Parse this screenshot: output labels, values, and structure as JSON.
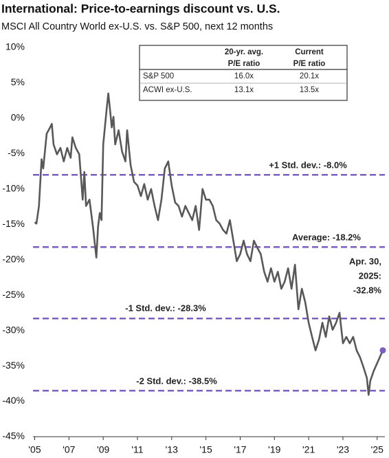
{
  "chart_data": {
    "type": "line",
    "title": "International: Price-to-earnings discount vs. U.S.",
    "subtitle": "MSCI All Country World ex-U.S. vs. S&P 500, next 12 months",
    "color": "#58585a",
    "x": [
      2005.0,
      2005.1,
      2005.25,
      2005.4,
      2005.5,
      2005.7,
      2005.9,
      2006.0,
      2006.1,
      2006.3,
      2006.5,
      2006.7,
      2006.9,
      2007.1,
      2007.2,
      2007.4,
      2007.6,
      2007.8,
      2007.9,
      2008.0,
      2008.2,
      2008.4,
      2008.6,
      2008.7,
      2008.8,
      2008.9,
      2009.0,
      2009.2,
      2009.3,
      2009.4,
      2009.5,
      2009.6,
      2009.7,
      2009.9,
      2010.1,
      2010.3,
      2010.4,
      2010.6,
      2010.8,
      2011.0,
      2011.2,
      2011.4,
      2011.6,
      2011.8,
      2012.0,
      2012.2,
      2012.4,
      2012.6,
      2012.8,
      2013.0,
      2013.2,
      2013.4,
      2013.6,
      2013.8,
      2014.0,
      2014.2,
      2014.4,
      2014.6,
      2014.8,
      2015.0,
      2015.2,
      2015.4,
      2015.6,
      2015.8,
      2016.0,
      2016.2,
      2016.4,
      2016.6,
      2016.8,
      2017.0,
      2017.2,
      2017.4,
      2017.6,
      2017.8,
      2018.0,
      2018.2,
      2018.4,
      2018.6,
      2018.8,
      2019.0,
      2019.2,
      2019.4,
      2019.6,
      2019.8,
      2020.0,
      2020.2,
      2020.4,
      2020.6,
      2020.8,
      2021.0,
      2021.2,
      2021.4,
      2021.6,
      2021.8,
      2022.0,
      2022.2,
      2022.4,
      2022.6,
      2022.8,
      2023.0,
      2023.2,
      2023.4,
      2023.6,
      2023.8,
      2024.0,
      2024.2,
      2024.4,
      2024.5,
      2024.6,
      2024.8,
      2025.33
    ],
    "values": [
      -14.7,
      -14.9,
      -12.4,
      -5.8,
      -7.1,
      -2.2,
      -1.3,
      -0.8,
      -3.7,
      -5.1,
      -4.2,
      -6.1,
      -4.2,
      -5.6,
      -2.7,
      -4.2,
      -5.1,
      -11.5,
      -7.6,
      -12.4,
      -11.5,
      -15.3,
      -19.7,
      -15.3,
      -13.4,
      -14.4,
      -3.7,
      1.2,
      3.5,
      1.2,
      -1.3,
      0.2,
      -3.7,
      -1.7,
      -4.7,
      -6.1,
      -1.7,
      -6.6,
      -9.0,
      -9.5,
      -11.0,
      -9.3,
      -11.5,
      -10.0,
      -12.4,
      -14.4,
      -11.5,
      -7.1,
      -6.1,
      -9.5,
      -11.9,
      -12.4,
      -13.9,
      -12.4,
      -13.4,
      -14.4,
      -12.4,
      -15.8,
      -10.0,
      -11.5,
      -11.5,
      -12.4,
      -14.4,
      -14.9,
      -15.8,
      -16.3,
      -14.4,
      -17.3,
      -20.2,
      -19.2,
      -17.3,
      -19.2,
      -20.2,
      -17.3,
      -18.3,
      -19.2,
      -21.7,
      -23.1,
      -21.2,
      -23.1,
      -21.7,
      -24.1,
      -23.1,
      -21.2,
      -24.1,
      -20.7,
      -27.0,
      -24.1,
      -26.0,
      -28.9,
      -30.9,
      -32.8,
      -31.3,
      -28.9,
      -30.9,
      -28.0,
      -29.9,
      -28.9,
      -27.5,
      -31.8,
      -30.9,
      -31.8,
      -30.9,
      -32.8,
      -33.8,
      -35.2,
      -36.7,
      -39.1,
      -37.1,
      -35.7,
      -32.8
    ],
    "xlim": [
      2004.9,
      2025.45
    ],
    "ylim": [
      -45,
      10
    ],
    "xticks": [
      {
        "value": 2005,
        "label": "'05"
      },
      {
        "value": 2007,
        "label": "'07"
      },
      {
        "value": 2009,
        "label": "'09"
      },
      {
        "value": 2011,
        "label": "'11"
      },
      {
        "value": 2013,
        "label": "'13"
      },
      {
        "value": 2015,
        "label": "'15"
      },
      {
        "value": 2017,
        "label": "'17"
      },
      {
        "value": 2019,
        "label": "'19"
      },
      {
        "value": 2021,
        "label": "'21"
      },
      {
        "value": 2023,
        "label": "'23"
      },
      {
        "value": 2025,
        "label": "'25"
      }
    ],
    "yticks": [
      {
        "value": 10,
        "label": "10%"
      },
      {
        "value": 5,
        "label": "5%"
      },
      {
        "value": 0,
        "label": "0%"
      },
      {
        "value": -5,
        "label": "-5%"
      },
      {
        "value": -10,
        "label": "-10%"
      },
      {
        "value": -15,
        "label": "-15%"
      },
      {
        "value": -20,
        "label": "-20%"
      },
      {
        "value": -25,
        "label": "-25%"
      },
      {
        "value": -30,
        "label": "-30%"
      },
      {
        "value": -35,
        "label": "-35%"
      },
      {
        "value": -40,
        "label": "-40%"
      },
      {
        "value": -45,
        "label": "-45%"
      }
    ],
    "reference_color": "#7a5fc0",
    "reference_lines": [
      {
        "value": -8.0,
        "label": "+1 Std. dev.: -8.0%"
      },
      {
        "value": -18.2,
        "label": "Average: -18.2%"
      },
      {
        "value": -28.3,
        "label": "-1 Std. dev.: -28.3%"
      },
      {
        "value": -38.5,
        "label": "-2 Std. dev.: -38.5%"
      }
    ],
    "end_annotation": [
      "Apr. 30,",
      "2025:",
      "-32.8%"
    ],
    "table": {
      "header": [
        [
          "20-yr. avg.",
          "P/E ratio"
        ],
        [
          "Current",
          "P/E ratio"
        ]
      ],
      "rows": [
        [
          "S&P 500",
          "16.0x",
          "20.1x"
        ],
        [
          "ACWI ex-U.S.",
          "13.1x",
          "13.5x"
        ]
      ]
    }
  }
}
